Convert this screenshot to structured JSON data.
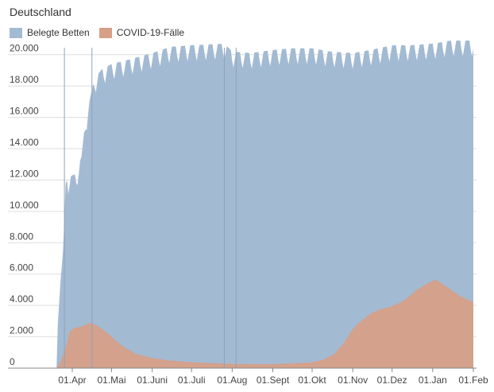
{
  "title": "Deutschland",
  "colors": {
    "belegte_betten": "#a3bad3",
    "covid_faelle": "#d69f88",
    "grid": "#dddddd",
    "axis": "#888888",
    "event_line": "#8fa3b8"
  },
  "chart_data": {
    "type": "area",
    "title": "Deutschland",
    "xlabel": "",
    "ylabel": "",
    "ylim": [
      0,
      21000
    ],
    "legend_position": "top-left",
    "grid": true,
    "y_ticks": [
      0,
      2000,
      4000,
      6000,
      8000,
      10000,
      12000,
      14000,
      16000,
      18000,
      20000
    ],
    "y_tick_labels": [
      "0",
      "2.000",
      "4.000",
      "6.000",
      "8.000",
      "10.000",
      "12.000",
      "14.000",
      "16.000",
      "18.000",
      "20.000"
    ],
    "x_ticks": [
      "2020-04-01",
      "2020-05-01",
      "2020-06-01",
      "2020-07-01",
      "2020-08-01",
      "2020-09-01",
      "2020-10-01",
      "2020-11-01",
      "2020-12-01",
      "2021-01-01",
      "2021-02-01"
    ],
    "x_tick_labels": [
      "01.Apr",
      "01.Mai",
      "01.Juni",
      "01.Juli",
      "01.Aug",
      "01.Sept",
      "01.Okt",
      "01.Nov",
      "01.Dez",
      "01.Jan",
      "01.Feb"
    ],
    "x_range": [
      "2020-03-20",
      "2021-02-01"
    ],
    "event_lines": [
      "2020-03-26",
      "2020-04-16",
      "2020-07-26",
      "2020-08-04"
    ],
    "series": [
      {
        "name": "Belegte Betten",
        "weekly_dip": 1000,
        "points": [
          [
            "2020-03-20",
            0
          ],
          [
            "2020-03-21",
            2800
          ],
          [
            "2020-03-23",
            5500
          ],
          [
            "2020-03-25",
            7500
          ],
          [
            "2020-03-27",
            11800
          ],
          [
            "2020-03-29",
            12100
          ],
          [
            "2020-04-01",
            12300
          ],
          [
            "2020-04-04",
            12400
          ],
          [
            "2020-04-08",
            13500
          ],
          [
            "2020-04-11",
            15800
          ],
          [
            "2020-04-14",
            17000
          ],
          [
            "2020-04-18",
            18500
          ],
          [
            "2020-04-24",
            19100
          ],
          [
            "2020-05-01",
            19400
          ],
          [
            "2020-05-15",
            19700
          ],
          [
            "2020-06-01",
            20100
          ],
          [
            "2020-06-15",
            20500
          ],
          [
            "2020-07-01",
            20600
          ],
          [
            "2020-07-15",
            20650
          ],
          [
            "2020-07-26",
            20700
          ],
          [
            "2020-08-01",
            20200
          ],
          [
            "2020-08-15",
            20100
          ],
          [
            "2020-09-01",
            20300
          ],
          [
            "2020-09-15",
            20400
          ],
          [
            "2020-10-01",
            20400
          ],
          [
            "2020-10-15",
            20200
          ],
          [
            "2020-11-01",
            20100
          ],
          [
            "2020-11-15",
            20300
          ],
          [
            "2020-12-01",
            20600
          ],
          [
            "2020-12-15",
            20600
          ],
          [
            "2021-01-01",
            20700
          ],
          [
            "2021-01-15",
            20900
          ],
          [
            "2021-02-01",
            20900
          ]
        ]
      },
      {
        "name": "COVID-19-Fälle",
        "weekly_dip": 0,
        "points": [
          [
            "2020-03-20",
            0
          ],
          [
            "2020-03-23",
            400
          ],
          [
            "2020-03-27",
            1300
          ],
          [
            "2020-03-30",
            2300
          ],
          [
            "2020-04-02",
            2550
          ],
          [
            "2020-04-08",
            2650
          ],
          [
            "2020-04-15",
            2900
          ],
          [
            "2020-04-20",
            2700
          ],
          [
            "2020-04-27",
            2300
          ],
          [
            "2020-05-05",
            1700
          ],
          [
            "2020-05-12",
            1250
          ],
          [
            "2020-05-20",
            900
          ],
          [
            "2020-06-01",
            650
          ],
          [
            "2020-06-15",
            480
          ],
          [
            "2020-07-01",
            380
          ],
          [
            "2020-07-15",
            320
          ],
          [
            "2020-08-01",
            280
          ],
          [
            "2020-08-15",
            260
          ],
          [
            "2020-09-01",
            260
          ],
          [
            "2020-09-15",
            300
          ],
          [
            "2020-10-01",
            370
          ],
          [
            "2020-10-10",
            550
          ],
          [
            "2020-10-18",
            900
          ],
          [
            "2020-10-26",
            1700
          ],
          [
            "2020-11-01",
            2500
          ],
          [
            "2020-11-08",
            3050
          ],
          [
            "2020-11-15",
            3500
          ],
          [
            "2020-11-22",
            3750
          ],
          [
            "2020-12-01",
            3950
          ],
          [
            "2020-12-10",
            4300
          ],
          [
            "2020-12-20",
            5000
          ],
          [
            "2020-12-28",
            5400
          ],
          [
            "2021-01-03",
            5650
          ],
          [
            "2021-01-08",
            5400
          ],
          [
            "2021-01-15",
            5000
          ],
          [
            "2021-01-22",
            4600
          ],
          [
            "2021-02-01",
            4200
          ]
        ]
      }
    ]
  }
}
